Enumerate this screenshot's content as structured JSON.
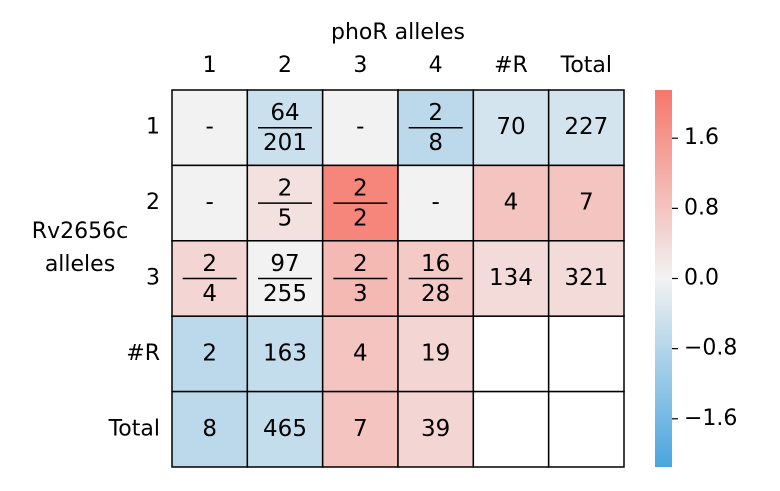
{
  "chart_data": {
    "type": "heatmap",
    "title": "phoR alleles",
    "ylabel": [
      "Rv2656c",
      "alleles"
    ],
    "columns": [
      "1",
      "2",
      "3",
      "4",
      "#R",
      "Total"
    ],
    "rows": [
      "1",
      "2",
      "3",
      "#R",
      "Total"
    ],
    "labels": [
      [
        "-",
        {
          "num": 64,
          "den": 201
        },
        "-",
        {
          "num": 2,
          "den": 8
        },
        70,
        227
      ],
      [
        "-",
        {
          "num": 2,
          "den": 5
        },
        {
          "num": 2,
          "den": 2
        },
        "-",
        4,
        7
      ],
      [
        {
          "num": 2,
          "den": 4
        },
        {
          "num": 97,
          "den": 255
        },
        {
          "num": 2,
          "den": 3
        },
        {
          "num": 16,
          "den": 28
        },
        134,
        321
      ],
      [
        2,
        163,
        4,
        19,
        null,
        null
      ],
      [
        8,
        465,
        7,
        39,
        null,
        null
      ]
    ],
    "values": [
      [
        0,
        -0.5,
        0,
        -0.7,
        -0.4,
        -0.4
      ],
      [
        0,
        0.3,
        1.9,
        0,
        0.8,
        0.8
      ],
      [
        0.5,
        0,
        1.0,
        0.7,
        0.4,
        0.4
      ],
      [
        -0.7,
        -0.6,
        0.8,
        0.5,
        null,
        null
      ],
      [
        -0.7,
        -0.6,
        0.8,
        0.5,
        null,
        null
      ]
    ],
    "colors": [
      "#4aa5de",
      "#f2f2f2",
      "#f6776b"
    ],
    "clim": [
      -2.15,
      2.15
    ],
    "cticks": [
      1.6,
      0.8,
      {
        "value": 0,
        "label": "0.0"
      },
      {
        "value": -0.8,
        "label": "−0.8"
      },
      {
        "value": -1.6,
        "label": "−1.6"
      }
    ]
  }
}
